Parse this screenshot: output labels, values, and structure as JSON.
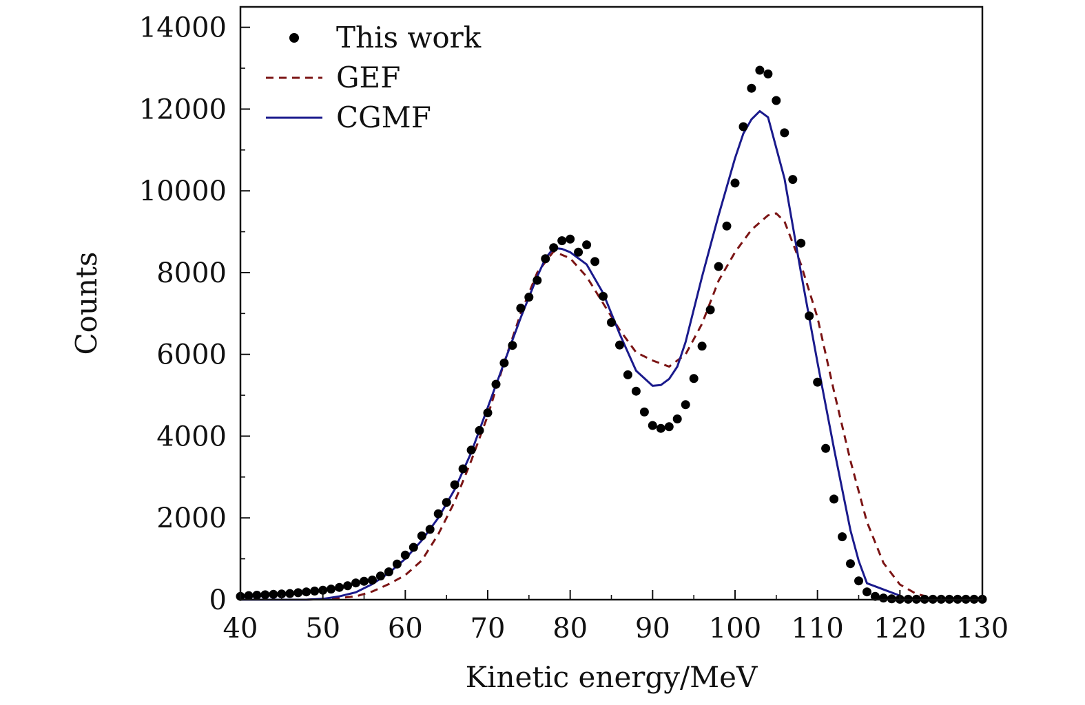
{
  "chart_data": {
    "type": "scatter",
    "xlabel": "Kinetic energy/MeV",
    "ylabel": "Counts",
    "xlim": [
      40,
      130
    ],
    "ylim": [
      0,
      14500
    ],
    "x_ticks": [
      40,
      50,
      60,
      70,
      80,
      90,
      100,
      110,
      120,
      130
    ],
    "x_tick_labels": [
      "40",
      "50",
      "60",
      "70",
      "80",
      "90",
      "100",
      "110",
      "120",
      "130"
    ],
    "y_ticks": [
      0,
      2000,
      4000,
      6000,
      8000,
      10000,
      12000,
      14000
    ],
    "y_tick_labels": [
      "0",
      "2000",
      "4000",
      "6000",
      "8000",
      "10000",
      "12000",
      "14000"
    ],
    "grid": false,
    "legend_position": "top-left",
    "series": [
      {
        "name": "This work",
        "kind": "scatter",
        "color": "#000000",
        "x": [
          40,
          41,
          42,
          43,
          44,
          45,
          46,
          47,
          48,
          49,
          50,
          51,
          52,
          53,
          54,
          55,
          56,
          57,
          58,
          59,
          60,
          61,
          62,
          63,
          64,
          65,
          66,
          67,
          68,
          69,
          70,
          71,
          72,
          73,
          74,
          75,
          76,
          77,
          78,
          79,
          80,
          81,
          82,
          83,
          84,
          85,
          86,
          87,
          88,
          89,
          90,
          91,
          92,
          93,
          94,
          95,
          96,
          97,
          98,
          99,
          100,
          101,
          102,
          103,
          104,
          105,
          106,
          107,
          108,
          109,
          110,
          111,
          112,
          113,
          114,
          115,
          116,
          117,
          118,
          119,
          120,
          121,
          122,
          123,
          124,
          125,
          126,
          127,
          128,
          129,
          130
        ],
        "y": [
          80,
          100,
          110,
          120,
          130,
          140,
          150,
          170,
          190,
          210,
          230,
          260,
          300,
          340,
          410,
          450,
          480,
          580,
          680,
          870,
          1090,
          1280,
          1560,
          1720,
          2100,
          2380,
          2810,
          3200,
          3660,
          4140,
          4570,
          5270,
          5790,
          6220,
          7130,
          7400,
          7810,
          8340,
          8610,
          8780,
          8820,
          8500,
          8680,
          8270,
          7420,
          6780,
          6230,
          5500,
          5100,
          4590,
          4260,
          4190,
          4230,
          4420,
          4770,
          5410,
          6200,
          7090,
          8150,
          9140,
          10190,
          11570,
          12510,
          12950,
          12860,
          12210,
          11420,
          10280,
          8720,
          6940,
          5320,
          3700,
          2460,
          1540,
          880,
          460,
          190,
          80,
          40,
          20,
          10,
          10,
          10,
          10,
          10,
          10,
          10,
          10,
          10,
          10,
          10
        ]
      },
      {
        "name": "GEF",
        "kind": "line",
        "style": "dashed",
        "color": "#7b1414",
        "x": [
          40,
          42,
          44,
          46,
          48,
          50,
          52,
          54,
          56,
          58,
          60,
          62,
          64,
          66,
          68,
          70,
          72,
          74,
          76,
          78,
          80,
          82,
          84,
          86,
          88,
          90,
          92,
          94,
          96,
          98,
          100,
          102,
          104,
          105,
          106,
          108,
          110,
          112,
          114,
          116,
          118,
          120,
          122,
          124,
          126,
          128,
          130
        ],
        "y": [
          0,
          0,
          0,
          0,
          0,
          20,
          40,
          80,
          200,
          380,
          600,
          960,
          1600,
          2400,
          3400,
          4500,
          5800,
          7000,
          8000,
          8520,
          8350,
          7900,
          7250,
          6600,
          6050,
          5850,
          5700,
          6000,
          6750,
          7800,
          8500,
          9050,
          9400,
          9450,
          9250,
          8200,
          6900,
          5100,
          3400,
          1900,
          900,
          370,
          140,
          40,
          10,
          0,
          0
        ]
      },
      {
        "name": "CGMF",
        "kind": "line",
        "style": "solid",
        "color": "#1a1a8c",
        "x": [
          40,
          42,
          44,
          46,
          48,
          50,
          52,
          54,
          56,
          58,
          60,
          62,
          64,
          66,
          68,
          70,
          72,
          74,
          76,
          77,
          78,
          79,
          80,
          82,
          84,
          86,
          88,
          90,
          91,
          92,
          93,
          94,
          96,
          98,
          100,
          101,
          102,
          103,
          104,
          106,
          108,
          110,
          112,
          114,
          115,
          116,
          118,
          120
        ],
        "y": [
          0,
          0,
          0,
          0,
          0,
          20,
          80,
          180,
          380,
          650,
          1000,
          1450,
          2000,
          2700,
          3600,
          4700,
          5800,
          6900,
          7900,
          8350,
          8600,
          8580,
          8500,
          8200,
          7500,
          6500,
          5600,
          5230,
          5250,
          5400,
          5700,
          6300,
          7900,
          9400,
          10800,
          11400,
          11750,
          11950,
          11800,
          10300,
          8000,
          5800,
          3700,
          1700,
          950,
          400,
          250,
          100
        ]
      }
    ]
  }
}
